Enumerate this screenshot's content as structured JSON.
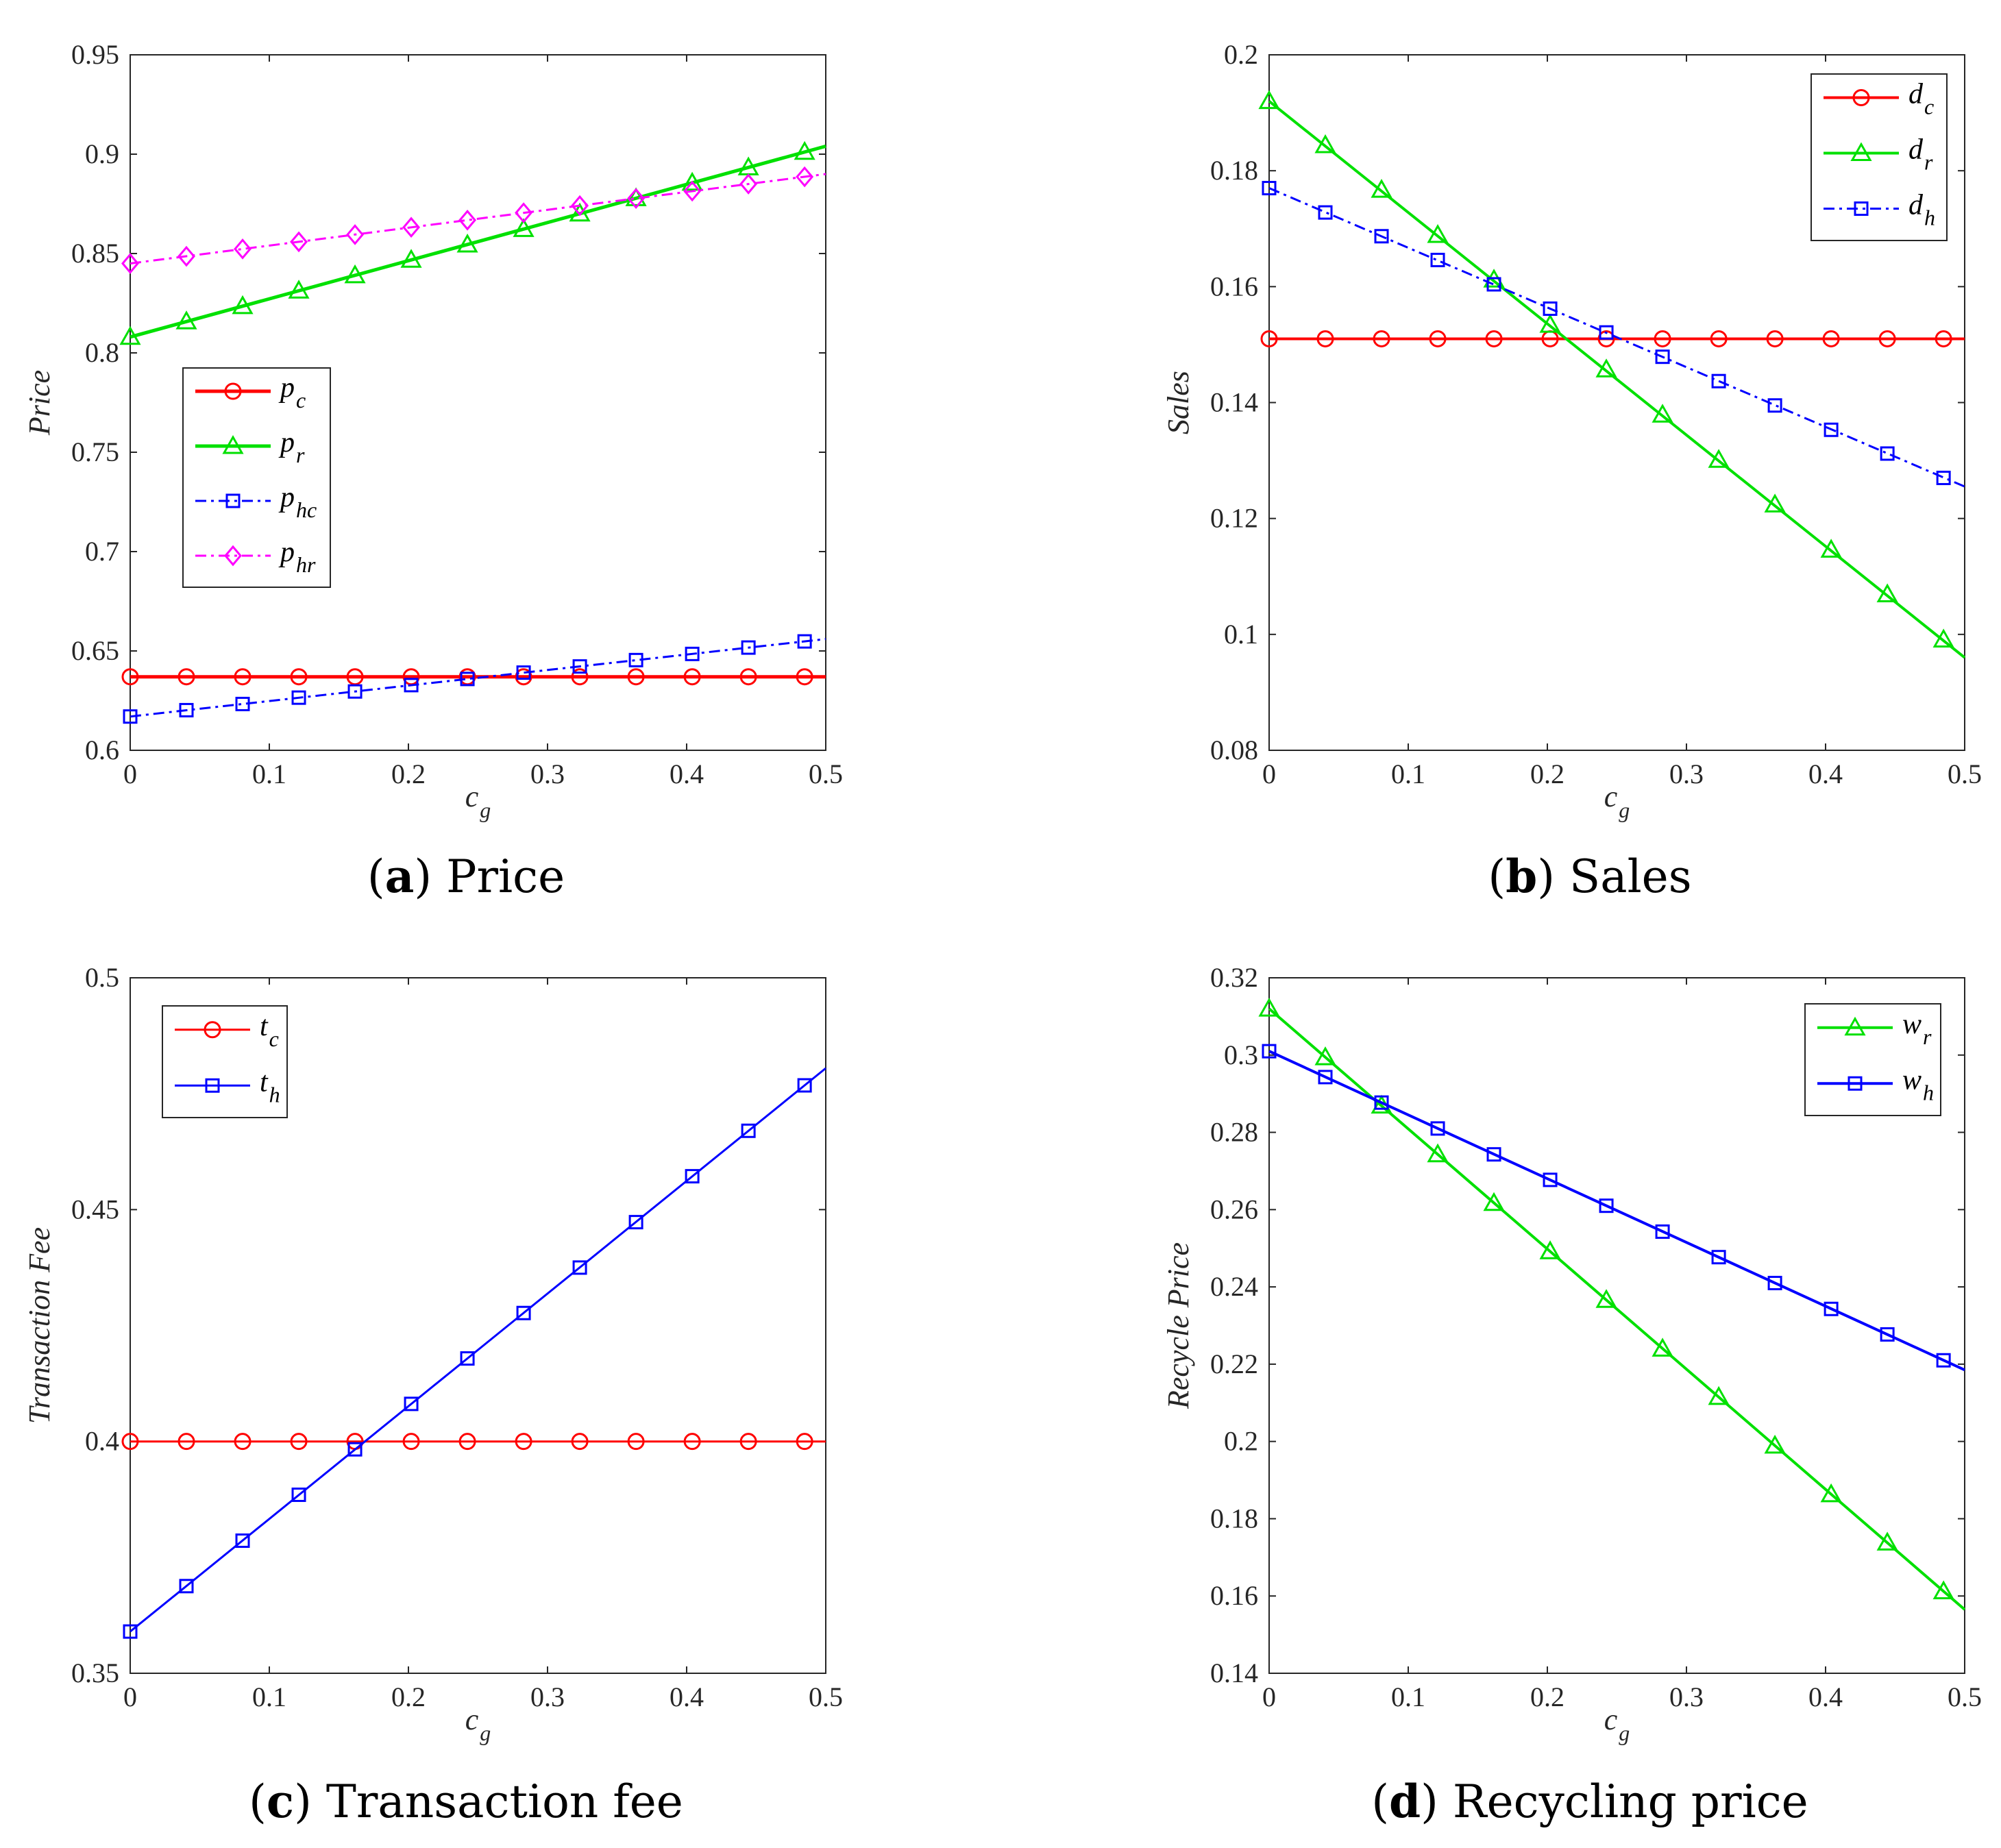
{
  "colors": {
    "red": "#ff0000",
    "green": "#00e000",
    "blue": "#0000ff",
    "magenta": "#ff00ff",
    "axis": "#000000"
  },
  "chart_data": [
    {
      "id": "a",
      "type": "line",
      "title": "",
      "xlabel": "c",
      "xlabel_sub": "g",
      "ylabel": "Price",
      "xlim": [
        0,
        0.5
      ],
      "ylim": [
        0.6,
        0.95
      ],
      "xticks": [
        "0",
        "0.1",
        "0.2",
        "0.3",
        "0.4",
        "0.5"
      ],
      "xtick_values": [
        0,
        0.1,
        0.2,
        0.3,
        0.4,
        0.5
      ],
      "yticks": [
        "0.6",
        "0.65",
        "0.7",
        "0.75",
        "0.8",
        "0.85",
        "0.9",
        "0.95"
      ],
      "ytick_values": [
        0.6,
        0.65,
        0.7,
        0.75,
        0.8,
        0.85,
        0.9,
        0.95
      ],
      "legend_position": "middle-left",
      "caption": {
        "letter": "a",
        "text": "Price"
      },
      "series": [
        {
          "name": "p",
          "sub": "c",
          "color": "#ff0000",
          "marker": "circle",
          "style": "solid",
          "width": 5,
          "line": [
            [
              0,
              0.637
            ],
            [
              0.5,
              0.637
            ]
          ],
          "points": [
            [
              0,
              0.637
            ],
            [
              0.0404,
              0.637
            ],
            [
              0.0808,
              0.637
            ],
            [
              0.1212,
              0.637
            ],
            [
              0.1616,
              0.637
            ],
            [
              0.202,
              0.637
            ],
            [
              0.2424,
              0.637
            ],
            [
              0.2828,
              0.637
            ],
            [
              0.3232,
              0.637
            ],
            [
              0.3636,
              0.637
            ],
            [
              0.404,
              0.637
            ],
            [
              0.4444,
              0.637
            ],
            [
              0.4848,
              0.637
            ]
          ]
        },
        {
          "name": "p",
          "sub": "r",
          "color": "#00e000",
          "marker": "triangle",
          "style": "solid",
          "width": 5,
          "line": [
            [
              0,
              0.808
            ],
            [
              0.5,
              0.904
            ]
          ],
          "points": [
            [
              0,
              0.808
            ],
            [
              0.0404,
              0.8158
            ],
            [
              0.0808,
              0.8235
            ],
            [
              0.1212,
              0.8313
            ],
            [
              0.1616,
              0.839
            ],
            [
              0.202,
              0.8468
            ],
            [
              0.2424,
              0.8545
            ],
            [
              0.2828,
              0.8623
            ],
            [
              0.3232,
              0.8701
            ],
            [
              0.3636,
              0.8778
            ],
            [
              0.404,
              0.8856
            ],
            [
              0.4444,
              0.8933
            ],
            [
              0.4848,
              0.9011
            ]
          ]
        },
        {
          "name": "p",
          "sub": "hc",
          "color": "#0000ff",
          "marker": "square",
          "style": "dashdot",
          "width": 3,
          "line": [
            [
              0,
              0.617
            ],
            [
              0.5,
              0.656
            ]
          ],
          "points": [
            [
              0,
              0.617
            ],
            [
              0.0404,
              0.6202
            ],
            [
              0.0808,
              0.6233
            ],
            [
              0.1212,
              0.6265
            ],
            [
              0.1616,
              0.6296
            ],
            [
              0.202,
              0.6328
            ],
            [
              0.2424,
              0.6359
            ],
            [
              0.2828,
              0.6391
            ],
            [
              0.3232,
              0.6422
            ],
            [
              0.3636,
              0.6454
            ],
            [
              0.404,
              0.6485
            ],
            [
              0.4444,
              0.6517
            ],
            [
              0.4848,
              0.6548
            ]
          ]
        },
        {
          "name": "p",
          "sub": "hr",
          "color": "#ff00ff",
          "marker": "diamond",
          "style": "dashdot",
          "width": 3,
          "line": [
            [
              0,
              0.845
            ],
            [
              0.5,
              0.89
            ]
          ],
          "points": [
            [
              0,
              0.845
            ],
            [
              0.0404,
              0.8486
            ],
            [
              0.0808,
              0.8523
            ],
            [
              0.1212,
              0.8559
            ],
            [
              0.1616,
              0.8595
            ],
            [
              0.202,
              0.8632
            ],
            [
              0.2424,
              0.8668
            ],
            [
              0.2828,
              0.8705
            ],
            [
              0.3232,
              0.8741
            ],
            [
              0.3636,
              0.8777
            ],
            [
              0.404,
              0.8814
            ],
            [
              0.4444,
              0.885
            ],
            [
              0.4848,
              0.8886
            ]
          ]
        }
      ]
    },
    {
      "id": "b",
      "type": "line",
      "title": "",
      "xlabel": "c",
      "xlabel_sub": "g",
      "ylabel": "Sales",
      "xlim": [
        0,
        0.5
      ],
      "ylim": [
        0.08,
        0.2
      ],
      "xticks": [
        "0",
        "0.1",
        "0.2",
        "0.3",
        "0.4",
        "0.5"
      ],
      "xtick_values": [
        0,
        0.1,
        0.2,
        0.3,
        0.4,
        0.5
      ],
      "yticks": [
        "0.08",
        "0.1",
        "0.12",
        "0.14",
        "0.16",
        "0.18",
        "0.2"
      ],
      "ytick_values": [
        0.08,
        0.1,
        0.12,
        0.14,
        0.16,
        0.18,
        0.2
      ],
      "legend_position": "top-right",
      "caption": {
        "letter": "b",
        "text": "Sales"
      },
      "series": [
        {
          "name": "d",
          "sub": "c",
          "color": "#ff0000",
          "marker": "circle",
          "style": "solid",
          "width": 4,
          "line": [
            [
              0,
              0.151
            ],
            [
              0.5,
              0.151
            ]
          ],
          "points": [
            [
              0,
              0.151
            ],
            [
              0.0404,
              0.151
            ],
            [
              0.0808,
              0.151
            ],
            [
              0.1212,
              0.151
            ],
            [
              0.1616,
              0.151
            ],
            [
              0.202,
              0.151
            ],
            [
              0.2424,
              0.151
            ],
            [
              0.2828,
              0.151
            ],
            [
              0.3232,
              0.151
            ],
            [
              0.3636,
              0.151
            ],
            [
              0.404,
              0.151
            ],
            [
              0.4444,
              0.151
            ],
            [
              0.4848,
              0.151
            ]
          ]
        },
        {
          "name": "d",
          "sub": "r",
          "color": "#00e000",
          "marker": "triangle",
          "style": "solid",
          "width": 4,
          "line": [
            [
              0,
              0.192
            ],
            [
              0.5,
              0.096
            ]
          ],
          "points": [
            [
              0,
              0.192
            ],
            [
              0.0404,
              0.1844
            ],
            [
              0.0808,
              0.1767
            ],
            [
              0.1212,
              0.1689
            ],
            [
              0.1616,
              0.1612
            ],
            [
              0.202,
              0.1534
            ],
            [
              0.2424,
              0.1457
            ],
            [
              0.2828,
              0.1379
            ],
            [
              0.3232,
              0.1301
            ],
            [
              0.3636,
              0.1224
            ],
            [
              0.404,
              0.1146
            ],
            [
              0.4444,
              0.1069
            ],
            [
              0.4848,
              0.0991
            ]
          ]
        },
        {
          "name": "d",
          "sub": "h",
          "color": "#0000ff",
          "marker": "square",
          "style": "dashdot",
          "width": 3,
          "line": [
            [
              0,
              0.177
            ],
            [
              0.5,
              0.1255
            ]
          ],
          "points": [
            [
              0,
              0.177
            ],
            [
              0.0404,
              0.1728
            ],
            [
              0.0808,
              0.1687
            ],
            [
              0.1212,
              0.1646
            ],
            [
              0.1616,
              0.1604
            ],
            [
              0.202,
              0.1562
            ],
            [
              0.2424,
              0.1521
            ],
            [
              0.2828,
              0.1479
            ],
            [
              0.3232,
              0.1437
            ],
            [
              0.3636,
              0.1395
            ],
            [
              0.404,
              0.1353
            ],
            [
              0.4444,
              0.1312
            ],
            [
              0.4848,
              0.127
            ]
          ]
        }
      ]
    },
    {
      "id": "c",
      "type": "line",
      "title": "",
      "xlabel": "c",
      "xlabel_sub": "g",
      "ylabel": "Transaction Fee",
      "xlim": [
        0,
        0.5
      ],
      "ylim": [
        0.35,
        0.5
      ],
      "xticks": [
        "0",
        "0.1",
        "0.2",
        "0.3",
        "0.4",
        "0.5"
      ],
      "xtick_values": [
        0,
        0.1,
        0.2,
        0.3,
        0.4,
        0.5
      ],
      "yticks": [
        "0.35",
        "0.4",
        "0.45",
        "0.5"
      ],
      "ytick_values": [
        0.35,
        0.4,
        0.45,
        0.5
      ],
      "legend_position": "top-left",
      "caption": {
        "letter": "c",
        "text": "Transaction fee"
      },
      "series": [
        {
          "name": "t",
          "sub": "c",
          "color": "#ff0000",
          "marker": "circle",
          "style": "solid",
          "width": 3,
          "line": [
            [
              0,
              0.4
            ],
            [
              0.5,
              0.4
            ]
          ],
          "points": [
            [
              0,
              0.4
            ],
            [
              0.0404,
              0.4
            ],
            [
              0.0808,
              0.4
            ],
            [
              0.1212,
              0.4
            ],
            [
              0.1616,
              0.4
            ],
            [
              0.202,
              0.4
            ],
            [
              0.2424,
              0.4
            ],
            [
              0.2828,
              0.4
            ],
            [
              0.3232,
              0.4
            ],
            [
              0.3636,
              0.4
            ],
            [
              0.404,
              0.4
            ],
            [
              0.4444,
              0.4
            ],
            [
              0.4848,
              0.4
            ]
          ]
        },
        {
          "name": "t",
          "sub": "h",
          "color": "#0000ff",
          "marker": "square",
          "style": "solid",
          "width": 3,
          "line": [
            [
              0,
              0.359
            ],
            [
              0.5,
              0.4805
            ]
          ],
          "points": [
            [
              0,
              0.359
            ],
            [
              0.0404,
              0.3688
            ],
            [
              0.0808,
              0.3786
            ],
            [
              0.1212,
              0.3885
            ],
            [
              0.1616,
              0.3983
            ],
            [
              0.202,
              0.4081
            ],
            [
              0.2424,
              0.4179
            ],
            [
              0.2828,
              0.4277
            ],
            [
              0.3232,
              0.4375
            ],
            [
              0.3636,
              0.4473
            ],
            [
              0.404,
              0.4572
            ],
            [
              0.4444,
              0.467
            ],
            [
              0.4848,
              0.4768
            ]
          ]
        }
      ]
    },
    {
      "id": "d",
      "type": "line",
      "title": "",
      "xlabel": "c",
      "xlabel_sub": "g",
      "ylabel": "Recycle Price",
      "xlim": [
        0,
        0.5
      ],
      "ylim": [
        0.14,
        0.32
      ],
      "xticks": [
        "0",
        "0.1",
        "0.2",
        "0.3",
        "0.4",
        "0.5"
      ],
      "xtick_values": [
        0,
        0.1,
        0.2,
        0.3,
        0.4,
        0.5
      ],
      "yticks": [
        "0.14",
        "0.16",
        "0.18",
        "0.2",
        "0.22",
        "0.24",
        "0.26",
        "0.28",
        "0.3",
        "0.32"
      ],
      "ytick_values": [
        0.14,
        0.16,
        0.18,
        0.2,
        0.22,
        0.24,
        0.26,
        0.28,
        0.3,
        0.32
      ],
      "legend_position": "top-right",
      "caption": {
        "letter": "d",
        "text": "Recycling price"
      },
      "series": [
        {
          "name": "w",
          "sub": "r",
          "color": "#00e000",
          "marker": "triangle",
          "style": "solid",
          "width": 4,
          "line": [
            [
              0,
              0.312
            ],
            [
              0.5,
              0.1565
            ]
          ],
          "points": [
            [
              0,
              0.312
            ],
            [
              0.0404,
              0.2994
            ],
            [
              0.0808,
              0.2869
            ],
            [
              0.1212,
              0.2743
            ],
            [
              0.1616,
              0.2617
            ],
            [
              0.202,
              0.2492
            ],
            [
              0.2424,
              0.2366
            ],
            [
              0.2828,
              0.224
            ],
            [
              0.3232,
              0.2115
            ],
            [
              0.3636,
              0.1989
            ],
            [
              0.404,
              0.1863
            ],
            [
              0.4444,
              0.1738
            ],
            [
              0.4848,
              0.1612
            ]
          ]
        },
        {
          "name": "w",
          "sub": "h",
          "color": "#0000ff",
          "marker": "square",
          "style": "solid",
          "width": 4,
          "line": [
            [
              0,
              0.301
            ],
            [
              0.5,
              0.2185
            ]
          ],
          "points": [
            [
              0,
              0.301
            ],
            [
              0.0404,
              0.2943
            ],
            [
              0.0808,
              0.2877
            ],
            [
              0.1212,
              0.281
            ],
            [
              0.1616,
              0.2743
            ],
            [
              0.202,
              0.2677
            ],
            [
              0.2424,
              0.261
            ],
            [
              0.2828,
              0.2543
            ],
            [
              0.3232,
              0.2477
            ],
            [
              0.3636,
              0.241
            ],
            [
              0.404,
              0.2343
            ],
            [
              0.4444,
              0.2277
            ],
            [
              0.4848,
              0.221
            ]
          ]
        }
      ]
    }
  ]
}
